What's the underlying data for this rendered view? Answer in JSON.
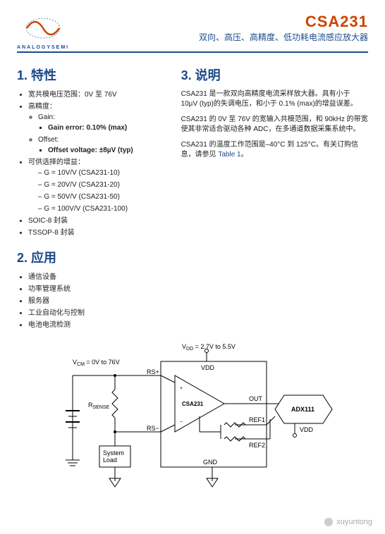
{
  "header": {
    "brand_letters": "ANALOGYSEMI",
    "part_number": "CSA231",
    "subtitle": "双向、高压、高精度、低功耗电流感应放大器"
  },
  "colors": {
    "brand_blue": "#1a4a8a",
    "accent_orange": "#cc4400",
    "text": "#222222",
    "background": "#ffffff"
  },
  "sections": {
    "features_title": "1. 特性",
    "apps_title": "2. 应用",
    "desc_title": "3. 说明"
  },
  "features": {
    "f1": "宽共模电压范围：0V 至 76V",
    "f2": "高精度：",
    "f2a": "Gain:",
    "f2a1": "Gain error: 0.10% (max)",
    "f2b": "Offset:",
    "f2b1": "Offset voltage: ±8µV (typ)",
    "f3": "可供选择的增益：",
    "f3a": "G = 10V/V (CSA231-10)",
    "f3b": "G = 20V/V (CSA231-20)",
    "f3c": "G = 50V/V (CSA231-50)",
    "f3d": "G = 100V/V (CSA231-100)",
    "f4": "SOIC-8 封装",
    "f5": "TSSOP-8 封装"
  },
  "applications": {
    "a1": "通信设备",
    "a2": "功率管理系统",
    "a3": "服务器",
    "a4": "工业自动化与控制",
    "a5": "电池电流检测"
  },
  "description": {
    "p1": "CSA231 是一款双向高精度电流采样放大器。具有小于 10µV (typ)的失调电压，和小于 0.1% (max)的增益误差。",
    "p2": "CSA231 的 0V 至 76V 的宽输入共模范围，和 90kHz 的带宽使其非常适合驱动各种 ADC，在多通道数据采集系统中。",
    "p3_a": "CSA231 的温度工作范围是–40°C 到 125°C。有关订购信息，请参见 ",
    "p3_link": "Table 1",
    "p3_b": "。"
  },
  "diagram": {
    "vcm": "V",
    "vcm_sub": "CM",
    "vcm_range": " = 0V to 76V",
    "vdd": "V",
    "vdd_sub": "DD",
    "vdd_range": " = 2.7V to 5.5V",
    "rsp": "RS+",
    "rsn": "RS−",
    "rsense": "R",
    "rsense_sub": "SENSE",
    "sysload": "System\nLoad",
    "chip": "CSA231",
    "vdd_pin": "VDD",
    "out": "OUT",
    "ref1": "REF1",
    "ref2": "REF2",
    "gnd": "GND",
    "adc": "ADX111",
    "adc_vdd": "VDD"
  },
  "watermark": "xuyuntong"
}
